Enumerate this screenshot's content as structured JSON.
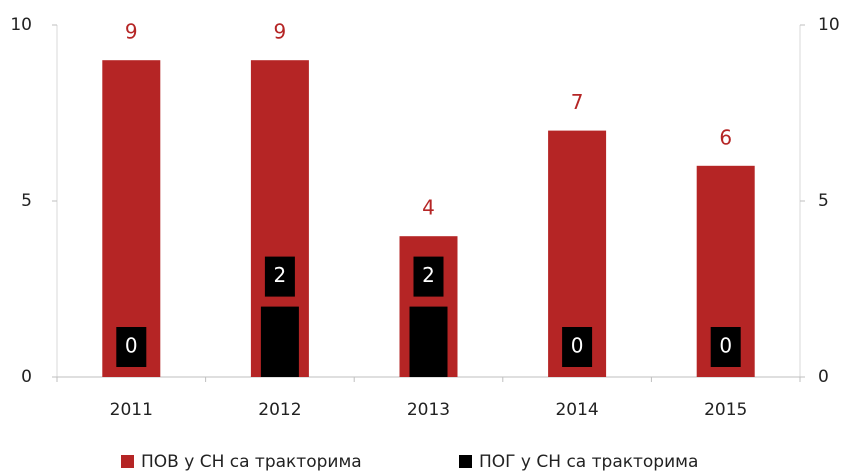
{
  "chart_data": {
    "type": "bar",
    "categories": [
      "2011",
      "2012",
      "2013",
      "2014",
      "2015"
    ],
    "series": [
      {
        "name": "ПОВ у СН са тракторима",
        "color": "#b52525",
        "values": [
          9,
          9,
          4,
          7,
          6
        ]
      },
      {
        "name": "ПОГ у СН са тракторима",
        "color": "#000000",
        "values": [
          0,
          2,
          2,
          0,
          0
        ],
        "axis": "y2"
      }
    ],
    "ylim": [
      0,
      10
    ],
    "yticks": [
      0,
      5,
      10
    ],
    "y2lim": [
      0,
      10
    ],
    "y2ticks": [
      0,
      5,
      10
    ],
    "legend": "bottom"
  }
}
